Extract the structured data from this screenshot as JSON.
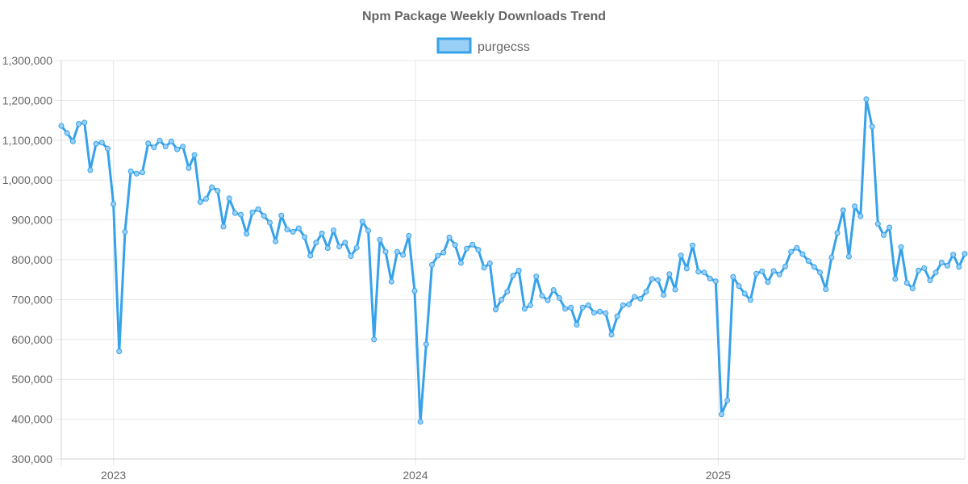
{
  "chart_data": {
    "type": "line",
    "title": "Npm Package Weekly Downloads Trend",
    "legend_position": "top-center",
    "grid": true,
    "series": [
      {
        "name": "purgecss",
        "color": "#36a2eb",
        "fill_color": "#9ad0f5",
        "values": [
          1136000,
          1118000,
          1097000,
          1141000,
          1144000,
          1025000,
          1091000,
          1094000,
          1079000,
          940000,
          570000,
          870000,
          1022000,
          1016000,
          1019000,
          1092000,
          1082000,
          1099000,
          1084000,
          1097000,
          1077000,
          1084000,
          1030000,
          1063000,
          945000,
          953000,
          982000,
          973000,
          883000,
          954000,
          917000,
          913000,
          865000,
          919000,
          927000,
          910000,
          893000,
          846000,
          911000,
          876000,
          870000,
          879000,
          857000,
          810000,
          843000,
          866000,
          829000,
          874000,
          833000,
          843000,
          809000,
          830000,
          896000,
          873000,
          600000,
          850000,
          820000,
          745000,
          820000,
          812000,
          860000,
          722000,
          393000,
          588000,
          787000,
          810000,
          818000,
          856000,
          837000,
          792000,
          828000,
          838000,
          825000,
          780000,
          791000,
          675000,
          700000,
          720000,
          760000,
          773000,
          677000,
          686000,
          758000,
          710000,
          698000,
          724000,
          704000,
          677000,
          680000,
          637000,
          680000,
          686000,
          667000,
          670000,
          666000,
          612000,
          658000,
          686000,
          688000,
          707000,
          702000,
          720000,
          752000,
          749000,
          712000,
          764000,
          725000,
          811000,
          778000,
          836000,
          770000,
          768000,
          753000,
          746000,
          412000,
          447000,
          757000,
          734000,
          715000,
          699000,
          765000,
          771000,
          744000,
          772000,
          763000,
          783000,
          820000,
          830000,
          814000,
          797000,
          782000,
          768000,
          726000,
          806000,
          867000,
          924000,
          808000,
          934000,
          909000,
          1203000,
          1134000,
          890000,
          862000,
          881000,
          752000,
          832000,
          742000,
          728000,
          773000,
          779000,
          748000,
          768000,
          793000,
          785000,
          813000,
          782000,
          815000
        ]
      }
    ],
    "x_axis": {
      "type": "date",
      "start": "2022-10-30",
      "interval_days": 7,
      "tick_labels": [
        {
          "label": "2023",
          "date": "2023-01-01"
        },
        {
          "label": "2024",
          "date": "2024-01-01"
        },
        {
          "label": "2025",
          "date": "2025-01-01"
        }
      ]
    },
    "y_axis": {
      "ylim": [
        300000,
        1300000
      ],
      "ticks": [
        300000,
        400000,
        500000,
        600000,
        700000,
        800000,
        900000,
        1000000,
        1100000,
        1200000,
        1300000
      ],
      "tick_labels": [
        "300,000",
        "400,000",
        "500,000",
        "600,000",
        "700,000",
        "800,000",
        "900,000",
        "1,000,000",
        "1,100,000",
        "1,200,000",
        "1,300,000"
      ]
    }
  }
}
